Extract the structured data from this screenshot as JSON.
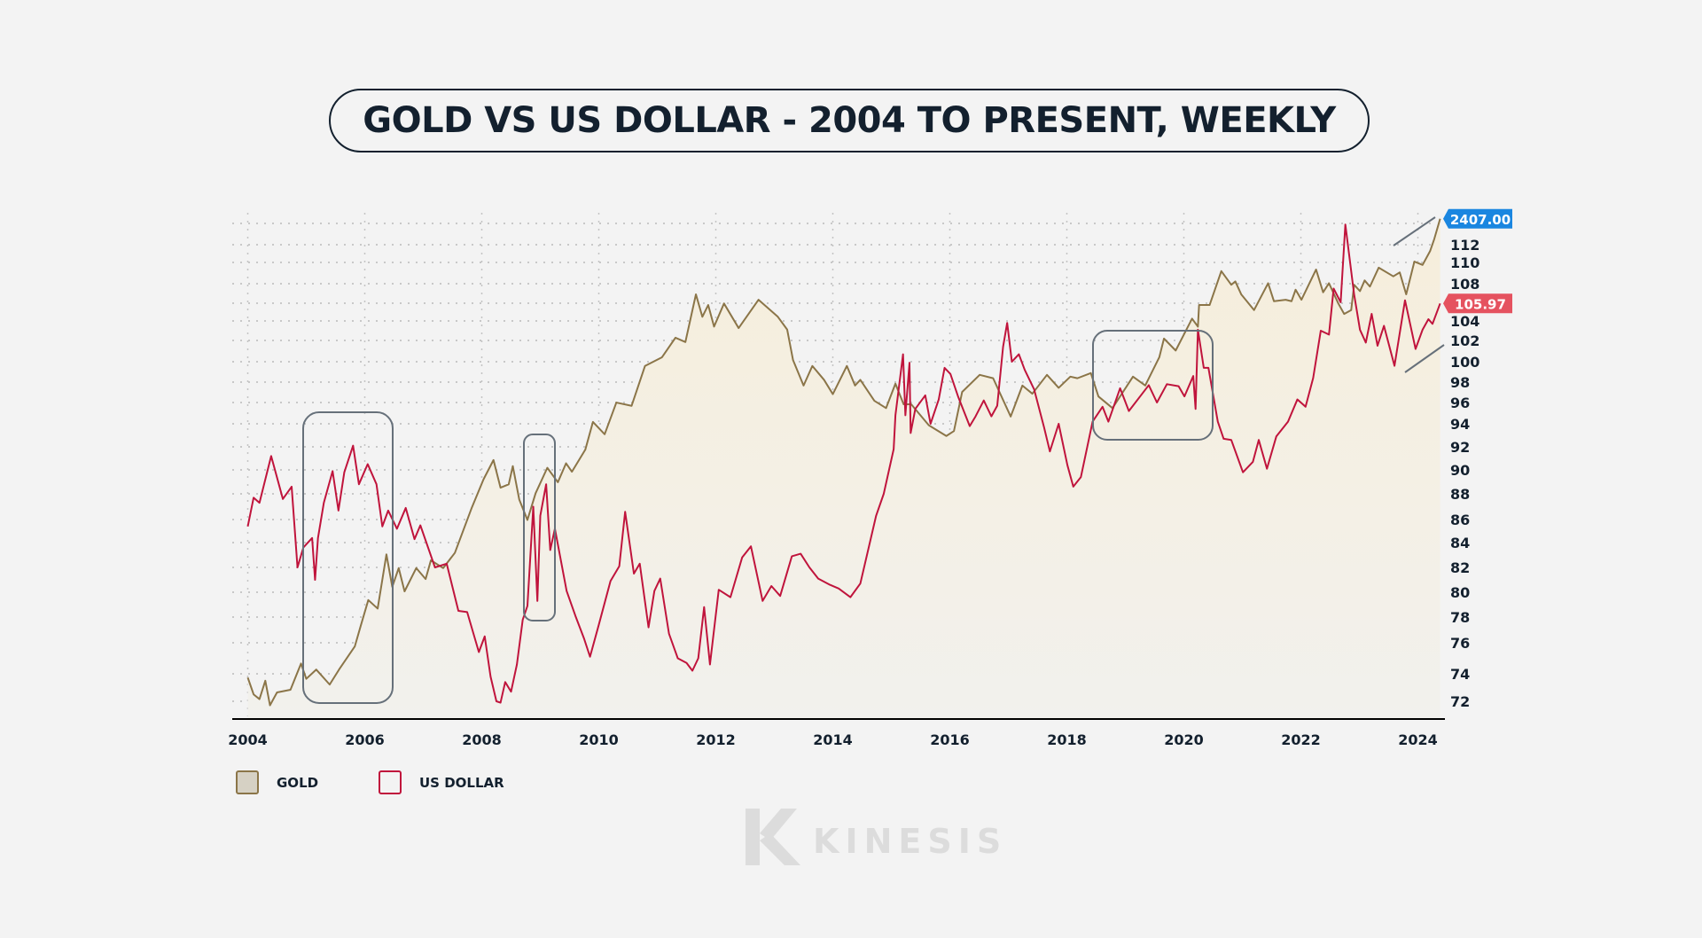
{
  "title": "GOLD VS US DOLLAR - 2004 TO PRESENT, WEEKLY",
  "legend": [
    {
      "label": "GOLD",
      "color": "#8b7548",
      "fill": "#d6d1c4"
    },
    {
      "label": "US DOLLAR",
      "color": "#c0143c",
      "fill": "#f3f3f3"
    }
  ],
  "logo": {
    "text": "KINESIS"
  },
  "chart_data": {
    "type": "line",
    "title": "GOLD VS US DOLLAR - 2004 TO PRESENT, WEEKLY",
    "xlabel": "",
    "ylabel": "",
    "x_ticks": [
      "2004",
      "2006",
      "2008",
      "2010",
      "2012",
      "2014",
      "2016",
      "2018",
      "2020",
      "2022",
      "2024"
    ],
    "y_ticks": [
      "72",
      "74",
      "76",
      "78",
      "80",
      "82",
      "84",
      "86",
      "88",
      "90",
      "92",
      "94",
      "96",
      "98",
      "100",
      "102",
      "104",
      "108",
      "110",
      "112"
    ],
    "grid": true,
    "legend_position": "bottom-left",
    "last_value_labels": [
      {
        "series": "GOLD",
        "text": "2407.00",
        "color": "#1a86e0"
      },
      {
        "series": "US DOLLAR",
        "text": "105.97",
        "color": "#e5525f"
      }
    ],
    "series": [
      {
        "name": "GOLD",
        "color": "#8b7548",
        "axis": "hidden",
        "area_fill": true,
        "points": [
          [
            2004.0,
            419
          ],
          [
            2004.1,
            393
          ],
          [
            2004.2,
            386
          ],
          [
            2004.3,
            414
          ],
          [
            2004.38,
            377
          ],
          [
            2004.5,
            396
          ],
          [
            2004.73,
            400
          ],
          [
            2004.91,
            442
          ],
          [
            2005.0,
            417
          ],
          [
            2005.17,
            432
          ],
          [
            2005.4,
            408
          ],
          [
            2005.56,
            432
          ],
          [
            2005.83,
            472
          ],
          [
            2005.93,
            510
          ],
          [
            2006.06,
            563
          ],
          [
            2006.22,
            545
          ],
          [
            2006.37,
            670
          ],
          [
            2006.47,
            592
          ],
          [
            2006.58,
            636
          ],
          [
            2006.68,
            582
          ],
          [
            2006.88,
            636
          ],
          [
            2007.04,
            610
          ],
          [
            2007.13,
            655
          ],
          [
            2007.34,
            636
          ],
          [
            2007.54,
            674
          ],
          [
            2007.83,
            801
          ],
          [
            2008.03,
            892
          ],
          [
            2008.2,
            960
          ],
          [
            2008.32,
            864
          ],
          [
            2008.46,
            875
          ],
          [
            2008.53,
            938
          ],
          [
            2008.64,
            826
          ],
          [
            2008.78,
            764
          ],
          [
            2008.92,
            846
          ],
          [
            2009.12,
            932
          ],
          [
            2009.3,
            882
          ],
          [
            2009.44,
            948
          ],
          [
            2009.54,
            918
          ],
          [
            2009.77,
            999
          ],
          [
            2009.9,
            1110
          ],
          [
            2010.1,
            1059
          ],
          [
            2010.3,
            1195
          ],
          [
            2010.56,
            1180
          ],
          [
            2010.79,
            1374
          ],
          [
            2011.08,
            1420
          ],
          [
            2011.31,
            1530
          ],
          [
            2011.48,
            1505
          ],
          [
            2011.66,
            1805
          ],
          [
            2011.77,
            1657
          ],
          [
            2011.87,
            1733
          ],
          [
            2011.97,
            1596
          ],
          [
            2012.14,
            1743
          ],
          [
            2012.39,
            1587
          ],
          [
            2012.73,
            1768
          ],
          [
            2013.06,
            1657
          ],
          [
            2013.22,
            1578
          ],
          [
            2013.32,
            1405
          ],
          [
            2013.5,
            1275
          ],
          [
            2013.65,
            1374
          ],
          [
            2013.85,
            1303
          ],
          [
            2014.0,
            1234
          ],
          [
            2014.24,
            1374
          ],
          [
            2014.38,
            1275
          ],
          [
            2014.47,
            1303
          ],
          [
            2014.71,
            1203
          ],
          [
            2014.91,
            1170
          ],
          [
            2015.07,
            1284
          ],
          [
            2015.21,
            1187
          ],
          [
            2015.34,
            1187
          ],
          [
            2015.64,
            1096
          ],
          [
            2015.94,
            1052
          ],
          [
            2016.07,
            1072
          ],
          [
            2016.21,
            1244
          ],
          [
            2016.51,
            1328
          ],
          [
            2016.74,
            1311
          ],
          [
            2017.04,
            1133
          ],
          [
            2017.24,
            1275
          ],
          [
            2017.41,
            1236
          ],
          [
            2017.66,
            1328
          ],
          [
            2017.86,
            1264
          ],
          [
            2018.06,
            1319
          ],
          [
            2018.18,
            1311
          ],
          [
            2018.41,
            1337
          ],
          [
            2018.54,
            1223
          ],
          [
            2018.78,
            1170
          ],
          [
            2019.13,
            1319
          ],
          [
            2019.34,
            1275
          ],
          [
            2019.58,
            1420
          ],
          [
            2019.66,
            1525
          ],
          [
            2019.86,
            1457
          ],
          [
            2020.14,
            1645
          ],
          [
            2020.24,
            1596
          ],
          [
            2020.26,
            1733
          ],
          [
            2020.44,
            1733
          ],
          [
            2020.64,
            1972
          ],
          [
            2020.81,
            1872
          ],
          [
            2020.88,
            1896
          ],
          [
            2020.98,
            1805
          ],
          [
            2021.2,
            1700
          ],
          [
            2021.44,
            1883
          ],
          [
            2021.54,
            1758
          ],
          [
            2021.74,
            1768
          ],
          [
            2021.84,
            1758
          ],
          [
            2021.91,
            1837
          ],
          [
            2022.01,
            1768
          ],
          [
            2022.26,
            1984
          ],
          [
            2022.38,
            1819
          ],
          [
            2022.48,
            1883
          ],
          [
            2022.64,
            1743
          ],
          [
            2022.74,
            1675
          ],
          [
            2022.86,
            1700
          ],
          [
            2022.91,
            1872
          ],
          [
            2023.01,
            1827
          ],
          [
            2023.09,
            1903
          ],
          [
            2023.18,
            1859
          ],
          [
            2023.33,
            1998
          ],
          [
            2023.58,
            1933
          ],
          [
            2023.69,
            1962
          ],
          [
            2023.8,
            1805
          ],
          [
            2023.94,
            2045
          ],
          [
            2024.08,
            2019
          ],
          [
            2024.21,
            2130
          ],
          [
            2024.28,
            2229
          ],
          [
            2024.38,
            2407
          ]
        ]
      },
      {
        "name": "US DOLLAR",
        "color": "#c0143c",
        "axis": "right",
        "points": [
          [
            2004.0,
            85.4
          ],
          [
            2004.1,
            87.7
          ],
          [
            2004.2,
            87.3
          ],
          [
            2004.4,
            91.2
          ],
          [
            2004.6,
            87.6
          ],
          [
            2004.75,
            88.6
          ],
          [
            2004.85,
            82
          ],
          [
            2004.95,
            83.6
          ],
          [
            2005.1,
            84.4
          ],
          [
            2005.15,
            81
          ],
          [
            2005.2,
            84.4
          ],
          [
            2005.3,
            87.3
          ],
          [
            2005.45,
            89.9
          ],
          [
            2005.55,
            86.7
          ],
          [
            2005.65,
            89.8
          ],
          [
            2005.8,
            92.1
          ],
          [
            2005.9,
            88.8
          ],
          [
            2006.05,
            90.5
          ],
          [
            2006.2,
            88.8
          ],
          [
            2006.3,
            85.4
          ],
          [
            2006.4,
            86.7
          ],
          [
            2006.55,
            85.2
          ],
          [
            2006.7,
            86.9
          ],
          [
            2006.85,
            84.3
          ],
          [
            2006.95,
            85.5
          ],
          [
            2007.2,
            82
          ],
          [
            2007.4,
            82.3
          ],
          [
            2007.6,
            78.5
          ],
          [
            2007.75,
            78.4
          ],
          [
            2007.95,
            75.4
          ],
          [
            2008.05,
            76.5
          ],
          [
            2008.15,
            73.8
          ],
          [
            2008.25,
            72
          ],
          [
            2008.32,
            71.9
          ],
          [
            2008.4,
            73.4
          ],
          [
            2008.5,
            72.7
          ],
          [
            2008.6,
            74.6
          ],
          [
            2008.7,
            77.8
          ],
          [
            2008.78,
            78.9
          ],
          [
            2008.88,
            87
          ],
          [
            2008.95,
            79.3
          ],
          [
            2009.0,
            86.3
          ],
          [
            2009.1,
            88.8
          ],
          [
            2009.17,
            83.4
          ],
          [
            2009.25,
            85.2
          ],
          [
            2009.45,
            80.1
          ],
          [
            2009.6,
            78.1
          ],
          [
            2009.75,
            76.3
          ],
          [
            2009.85,
            75.1
          ],
          [
            2010.0,
            77.4
          ],
          [
            2010.2,
            80.9
          ],
          [
            2010.35,
            82.1
          ],
          [
            2010.45,
            86.6
          ],
          [
            2010.6,
            81.5
          ],
          [
            2010.7,
            82.3
          ],
          [
            2010.85,
            77.2
          ],
          [
            2010.95,
            80.1
          ],
          [
            2011.05,
            81.1
          ],
          [
            2011.2,
            76.7
          ],
          [
            2011.35,
            75
          ],
          [
            2011.5,
            74.7
          ],
          [
            2011.6,
            74.2
          ],
          [
            2011.7,
            75
          ],
          [
            2011.8,
            78.8
          ],
          [
            2011.9,
            74.6
          ],
          [
            2012.05,
            80.2
          ],
          [
            2012.25,
            79.6
          ],
          [
            2012.45,
            82.8
          ],
          [
            2012.6,
            83.7
          ],
          [
            2012.8,
            79.3
          ],
          [
            2012.95,
            80.5
          ],
          [
            2013.1,
            79.7
          ],
          [
            2013.3,
            82.9
          ],
          [
            2013.45,
            83.1
          ],
          [
            2013.6,
            82
          ],
          [
            2013.75,
            81.1
          ],
          [
            2013.95,
            80.6
          ],
          [
            2014.1,
            80.3
          ],
          [
            2014.3,
            79.6
          ],
          [
            2014.47,
            80.7
          ],
          [
            2014.74,
            86.3
          ],
          [
            2014.87,
            88
          ],
          [
            2015.04,
            91.8
          ],
          [
            2015.07,
            94.8
          ],
          [
            2015.2,
            100.7
          ],
          [
            2015.24,
            94.8
          ],
          [
            2015.31,
            99.9
          ],
          [
            2015.33,
            93.2
          ],
          [
            2015.41,
            95.4
          ],
          [
            2015.58,
            96.7
          ],
          [
            2015.67,
            94
          ],
          [
            2015.81,
            96.3
          ],
          [
            2015.91,
            99.4
          ],
          [
            2016.01,
            98.8
          ],
          [
            2016.14,
            96.6
          ],
          [
            2016.34,
            93.8
          ],
          [
            2016.44,
            94.7
          ],
          [
            2016.58,
            96.2
          ],
          [
            2016.71,
            94.7
          ],
          [
            2016.81,
            95.7
          ],
          [
            2016.91,
            101.4
          ],
          [
            2016.98,
            103.8
          ],
          [
            2017.06,
            100
          ],
          [
            2017.18,
            100.7
          ],
          [
            2017.28,
            99.2
          ],
          [
            2017.44,
            97.3
          ],
          [
            2017.61,
            93.7
          ],
          [
            2017.71,
            91.6
          ],
          [
            2017.86,
            94
          ],
          [
            2018.01,
            90.4
          ],
          [
            2018.11,
            88.6
          ],
          [
            2018.24,
            89.4
          ],
          [
            2018.44,
            94.2
          ],
          [
            2018.61,
            95.6
          ],
          [
            2018.71,
            94.2
          ],
          [
            2018.91,
            97.4
          ],
          [
            2019.06,
            95.2
          ],
          [
            2019.4,
            97.7
          ],
          [
            2019.54,
            96
          ],
          [
            2019.71,
            97.8
          ],
          [
            2019.91,
            97.6
          ],
          [
            2020.01,
            96.6
          ],
          [
            2020.16,
            98.6
          ],
          [
            2020.2,
            95.4
          ],
          [
            2020.24,
            103.1
          ],
          [
            2020.34,
            99.4
          ],
          [
            2020.42,
            99.4
          ],
          [
            2020.58,
            94.2
          ],
          [
            2020.68,
            92.7
          ],
          [
            2020.81,
            92.6
          ],
          [
            2021.01,
            89.8
          ],
          [
            2021.18,
            90.7
          ],
          [
            2021.28,
            92.6
          ],
          [
            2021.42,
            90.1
          ],
          [
            2021.58,
            92.9
          ],
          [
            2021.78,
            94.2
          ],
          [
            2021.94,
            96.3
          ],
          [
            2022.08,
            95.6
          ],
          [
            2022.21,
            98.4
          ],
          [
            2022.34,
            103
          ],
          [
            2022.48,
            102.6
          ],
          [
            2022.56,
            107.5
          ],
          [
            2022.68,
            106.1
          ],
          [
            2022.76,
            113.9
          ],
          [
            2022.91,
            106.9
          ],
          [
            2023.01,
            103.1
          ],
          [
            2023.11,
            101.8
          ],
          [
            2023.21,
            104.8
          ],
          [
            2023.31,
            101.5
          ],
          [
            2023.42,
            103.5
          ],
          [
            2023.6,
            99.6
          ],
          [
            2023.78,
            106.3
          ],
          [
            2023.96,
            101.2
          ],
          [
            2024.08,
            103.1
          ],
          [
            2024.18,
            104.2
          ],
          [
            2024.25,
            103.7
          ],
          [
            2024.38,
            105.97
          ]
        ]
      }
    ]
  }
}
